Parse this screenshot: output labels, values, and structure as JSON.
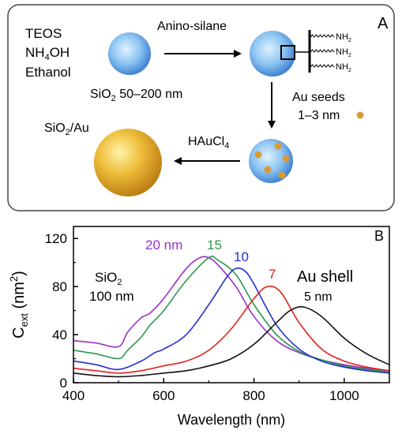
{
  "panel_a": {
    "label": "A",
    "reagents": [
      "TEOS",
      "NH",
      "4",
      "OH",
      "Ethanol"
    ],
    "silica_label": {
      "pre": "SiO",
      "sub": "2",
      "post": " 50–200 nm"
    },
    "step1_label": "Anino-silane",
    "amine_groups": [
      {
        "main": "NH",
        "sub": "2"
      },
      {
        "main": "NH",
        "sub": "2"
      },
      {
        "main": "NH",
        "sub": "2"
      }
    ],
    "seeds_label": [
      "Au seeds",
      "1–3 nm"
    ],
    "step3_label": {
      "main": "HAuCl",
      "sub": "4"
    },
    "product_label": {
      "pre": "SiO",
      "sub": "2",
      "post": "/Au"
    }
  },
  "panel_b": {
    "label": "B",
    "annotation_core": {
      "pre": "SiO",
      "sub": "2",
      "line2": "100 nm"
    },
    "annotation_shell": {
      "line1": "Au shell",
      "line2": "5 nm"
    },
    "thickness_labels": [
      "20 nm",
      "15",
      "10",
      "7"
    ]
  },
  "chart_data": {
    "type": "line",
    "xlabel": "Wavelength (nm)",
    "ylabel": {
      "main": "C",
      "sub": "ext",
      "post": " (nm",
      "sup": "2",
      "end": ")"
    },
    "xlim": [
      400,
      1100
    ],
    "ylim": [
      0,
      130
    ],
    "xticks": [
      400,
      600,
      800,
      1000
    ],
    "yticks": [
      0,
      40,
      80,
      120
    ],
    "grid": false,
    "series": [
      {
        "name": "20 nm",
        "color": "#9b30c8",
        "x": [
          400,
          450,
          500,
          520,
          550,
          570,
          600,
          650,
          680,
          700,
          720,
          760,
          800,
          850,
          900,
          950,
          1000,
          1050,
          1100
        ],
        "y": [
          35,
          33,
          30,
          42,
          54,
          58,
          70,
          95,
          104,
          104,
          98,
          80,
          55,
          35,
          25,
          19,
          15,
          12,
          10
        ]
      },
      {
        "name": "15",
        "color": "#2a9a4a",
        "x": [
          400,
          450,
          500,
          520,
          550,
          570,
          600,
          650,
          700,
          720,
          760,
          800,
          850,
          900,
          950,
          1000,
          1050,
          1100
        ],
        "y": [
          27,
          24,
          20,
          27,
          38,
          48,
          60,
          85,
          104,
          102,
          90,
          65,
          40,
          26,
          19,
          14,
          11,
          9
        ]
      },
      {
        "name": "10",
        "color": "#1f2fd0",
        "x": [
          400,
          450,
          500,
          550,
          580,
          600,
          650,
          700,
          740,
          760,
          780,
          800,
          850,
          900,
          950,
          1000,
          1050,
          1100
        ],
        "y": [
          18,
          15,
          11,
          18,
          25,
          28,
          40,
          65,
          88,
          95,
          93,
          82,
          48,
          28,
          18,
          13,
          10,
          8
        ]
      },
      {
        "name": "7",
        "color": "#e0221c",
        "x": [
          400,
          450,
          500,
          550,
          600,
          650,
          700,
          750,
          800,
          830,
          860,
          900,
          950,
          1000,
          1050,
          1100
        ],
        "y": [
          12,
          10,
          8,
          10,
          14,
          18,
          27,
          45,
          70,
          80,
          75,
          50,
          28,
          18,
          13,
          10
        ]
      },
      {
        "name": "5 nm",
        "color": "#111111",
        "x": [
          400,
          450,
          500,
          550,
          600,
          650,
          700,
          750,
          800,
          850,
          880,
          910,
          950,
          1000,
          1050,
          1100
        ],
        "y": [
          8,
          6,
          5,
          6,
          8,
          10,
          14,
          20,
          32,
          50,
          60,
          63,
          55,
          37,
          24,
          15
        ]
      }
    ]
  }
}
